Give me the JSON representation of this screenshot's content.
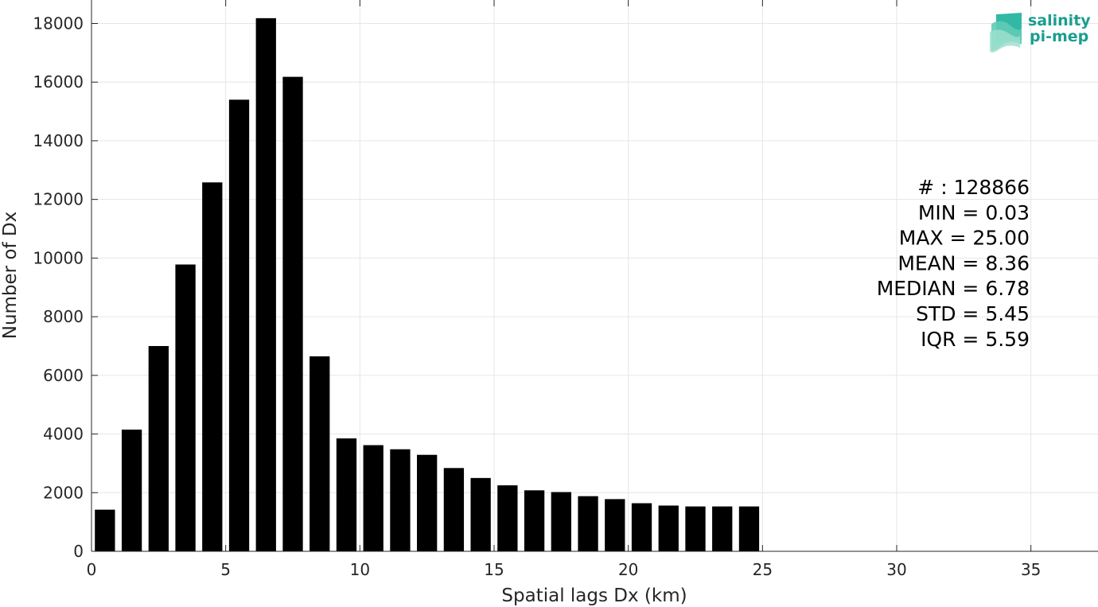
{
  "chart_data": {
    "type": "bar",
    "xlabel": "Spatial lags Dx (km)",
    "ylabel": "Number of Dx",
    "xlim": [
      0,
      37.5
    ],
    "ylim": [
      0,
      18800
    ],
    "xticks": [
      0,
      5,
      10,
      15,
      20,
      25,
      30,
      35
    ],
    "yticks": [
      0,
      2000,
      4000,
      6000,
      8000,
      10000,
      12000,
      14000,
      16000,
      18000
    ],
    "grid": true,
    "bar_color": "#000000",
    "bin_width": 1,
    "x": [
      0.5,
      1.5,
      2.5,
      3.5,
      4.5,
      5.5,
      6.5,
      7.5,
      8.5,
      9.5,
      10.5,
      11.5,
      12.5,
      13.5,
      14.5,
      15.5,
      16.5,
      17.5,
      18.5,
      19.5,
      20.5,
      21.5,
      22.5,
      23.5,
      24.5
    ],
    "values": [
      1420,
      4150,
      7000,
      9780,
      12580,
      15400,
      18180,
      16180,
      6650,
      3850,
      3620,
      3480,
      3290,
      2840,
      2500,
      2250,
      2080,
      2020,
      1880,
      1780,
      1640,
      1560,
      1530,
      1530,
      1530
    ],
    "annotations": [
      "# : 128866",
      "MIN = 0.03",
      "MAX =  25.00",
      "MEAN = 8.36",
      "MEDIAN = 6.78",
      "STD = 5.45",
      "IQR = 5.59"
    ]
  },
  "logo": {
    "line1": "salinity",
    "line2": "pi-mep",
    "color": "#1a9e8f",
    "icon": "waves-logo-icon"
  }
}
